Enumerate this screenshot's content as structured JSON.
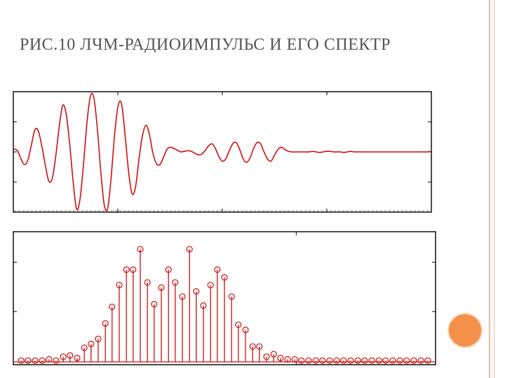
{
  "slide": {
    "title": "РИС.10 ЛЧМ-РАДИОИМПУЛЬС И ЕГО СПЕКТР",
    "accent_color": "#f5904a",
    "border_color": "#f2b8a0"
  },
  "chart_data": [
    {
      "type": "line",
      "title": "",
      "series_color": "#cc1111",
      "grid": false,
      "xlim": [
        0,
        1
      ],
      "ylim": [
        -1,
        1
      ],
      "x": [
        0,
        0.0083,
        0.0167,
        0.025,
        0.0333,
        0.0417,
        0.05,
        0.0583,
        0.0667,
        0.075,
        0.0833,
        0.0917,
        0.1,
        0.1083,
        0.1167,
        0.125,
        0.1333,
        0.1417,
        0.15,
        0.1583,
        0.1667,
        0.175,
        0.1833,
        0.1917,
        0.2,
        0.2083,
        0.2167,
        0.225,
        0.2333,
        0.2417,
        0.25,
        0.2583,
        0.2667,
        0.275,
        0.2833,
        0.2917,
        0.3,
        0.3083,
        0.3167,
        0.325,
        0.3333,
        0.3417,
        0.35,
        0.3583,
        0.3667,
        0.375,
        0.3833,
        0.3917,
        0.4,
        0.4083,
        0.4167,
        0.425,
        0.4333,
        0.4417,
        0.45,
        0.4583,
        0.4667,
        0.475,
        0.4833,
        0.4917,
        0.5,
        0.5083,
        0.5167,
        0.525,
        0.5333,
        0.5417,
        0.55,
        0.5583,
        0.5667,
        0.575,
        0.5833,
        0.5917,
        0.6,
        0.6083,
        0.6167,
        0.625,
        0.6333,
        0.6417,
        0.65,
        0.6583,
        0.6667,
        0.675,
        0.6833,
        0.6917,
        0.7,
        0.7083,
        0.7167,
        0.725,
        0.7333,
        0.7417,
        0.75,
        0.7583,
        0.7667,
        0.775,
        0.7833,
        0.7917,
        0.8,
        0.8083,
        0.8167,
        0.825,
        0.8333,
        0.8417,
        0.85,
        0.8583,
        0.8667,
        0.875,
        0.8833,
        0.8917,
        0.9,
        0.9083,
        0.9167,
        0.925,
        0.9333,
        0.9417,
        0.95,
        0.9583,
        0.9667,
        0.975,
        0.9833,
        0.9917,
        1
      ],
      "y": [
        0.05,
        0.02,
        -0.12,
        -0.22,
        -0.14,
        0.12,
        0.38,
        0.36,
        0.1,
        -0.22,
        -0.5,
        -0.46,
        -0.08,
        0.42,
        0.8,
        0.66,
        0.16,
        -0.5,
        -0.98,
        -0.82,
        -0.22,
        0.5,
        0.96,
        0.93,
        0.4,
        -0.34,
        -0.92,
        -0.96,
        -0.42,
        0.32,
        0.8,
        0.82,
        0.28,
        -0.34,
        -0.72,
        -0.6,
        -0.12,
        0.28,
        0.46,
        0.3,
        -0.02,
        -0.2,
        -0.22,
        -0.1,
        0.04,
        0.08,
        0.06,
        0.03,
        0.0,
        0.01,
        0.02,
        0.01,
        -0.02,
        -0.05,
        -0.04,
        0.02,
        0.1,
        0.14,
        0.06,
        -0.08,
        -0.16,
        -0.12,
        0.02,
        0.14,
        0.16,
        0.04,
        -0.12,
        -0.18,
        -0.1,
        0.06,
        0.16,
        0.14,
        0.0,
        -0.12,
        -0.16,
        -0.06,
        0.04,
        0.08,
        0.04,
        0.01,
        0.0,
        0.0,
        0.0,
        0.0,
        0.0,
        0.0,
        0.01,
        0.0,
        -0.01,
        0.0,
        0.01,
        0.01,
        0.0,
        0.0,
        0.0,
        -0.01,
        0.0,
        0.01,
        0.0,
        0.0,
        0.0,
        0.0,
        0.0,
        0.0,
        0.0,
        0.0,
        0.0,
        0.0,
        0.0,
        0.0,
        0.0,
        0.0,
        0.0,
        0.0,
        0.0,
        0.0,
        0.0,
        0.0,
        0.0,
        0.0,
        0.01
      ]
    },
    {
      "type": "stem",
      "title": "",
      "series_color": "#cc1111",
      "grid": false,
      "xlim": [
        0,
        1
      ],
      "ylim": [
        0,
        1
      ],
      "x": [
        0.017,
        0.033,
        0.05,
        0.067,
        0.083,
        0.1,
        0.117,
        0.133,
        0.15,
        0.167,
        0.183,
        0.2,
        0.217,
        0.233,
        0.25,
        0.267,
        0.283,
        0.3,
        0.317,
        0.333,
        0.35,
        0.367,
        0.383,
        0.4,
        0.417,
        0.433,
        0.45,
        0.467,
        0.483,
        0.5,
        0.517,
        0.533,
        0.55,
        0.567,
        0.583,
        0.6,
        0.617,
        0.633,
        0.65,
        0.667,
        0.683,
        0.7,
        0.717,
        0.733,
        0.75,
        0.767,
        0.783,
        0.8,
        0.817,
        0.833,
        0.85,
        0.867,
        0.883,
        0.9,
        0.917,
        0.933,
        0.95,
        0.967,
        0.983
      ],
      "y": [
        0.01,
        0.01,
        0.01,
        0.01,
        0.02,
        0.01,
        0.04,
        0.05,
        0.03,
        0.11,
        0.14,
        0.18,
        0.3,
        0.43,
        0.6,
        0.72,
        0.72,
        0.88,
        0.62,
        0.45,
        0.58,
        0.72,
        0.62,
        0.51,
        0.88,
        0.55,
        0.44,
        0.6,
        0.72,
        0.66,
        0.51,
        0.29,
        0.25,
        0.12,
        0.12,
        0.04,
        0.06,
        0.03,
        0.02,
        0.02,
        0.01,
        0.01,
        0.01,
        0.01,
        0.01,
        0.01,
        0.01,
        0.01,
        0.01,
        0.01,
        0.01,
        0.01,
        0.01,
        0.01,
        0.01,
        0.01,
        0.01,
        0.01,
        0.01
      ]
    }
  ]
}
